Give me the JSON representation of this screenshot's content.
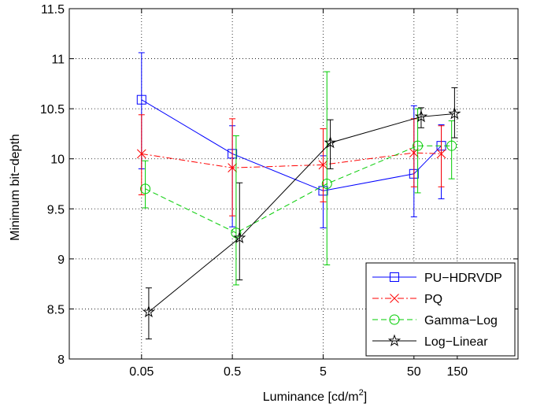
{
  "chart_data": {
    "type": "line",
    "title": "",
    "xlabel": "Luminance [cd/m",
    "xlabel_sup": "2",
    "xlabel_end": "]",
    "ylabel": "Minimum bit−depth",
    "x_scale": "log",
    "xlim": [
      0.008,
      700
    ],
    "ylim": [
      8,
      11.5
    ],
    "x_ticks": [
      0.05,
      0.5,
      5,
      50,
      150
    ],
    "x_tick_labels": [
      "0.05",
      "0.5",
      "5",
      "50",
      "150"
    ],
    "y_ticks": [
      8,
      8.5,
      9,
      9.5,
      10,
      10.5,
      11,
      11.5
    ],
    "y_tick_labels": [
      "8",
      "8.5",
      "9",
      "9.5",
      "10",
      "10.5",
      "11",
      "11.5"
    ],
    "grid": true,
    "legend_position": "bottom-right",
    "series": [
      {
        "name": "PU−HDRVDP",
        "color": "#0000ff",
        "dash": "solid",
        "marker": "square",
        "x": [
          0.05,
          0.5,
          5,
          50,
          100
        ],
        "y": [
          10.59,
          10.05,
          9.68,
          9.85,
          10.13
        ],
        "err_low": [
          9.9,
          9.32,
          9.31,
          9.42,
          9.6
        ],
        "err_high": [
          11.06,
          10.33,
          10.03,
          10.53,
          10.34
        ]
      },
      {
        "name": "PQ",
        "color": "#ff0000",
        "dash": "dashdot",
        "marker": "x",
        "x": [
          0.05,
          0.5,
          5,
          50,
          100
        ],
        "y": [
          10.05,
          9.91,
          9.94,
          10.06,
          10.05
        ],
        "err_low": [
          9.64,
          9.43,
          9.57,
          9.72,
          9.72
        ],
        "err_high": [
          10.44,
          10.4,
          10.3,
          10.4,
          10.33
        ]
      },
      {
        "name": "Gamma−Log",
        "color": "#00cc00",
        "dash": "dashed",
        "marker": "circle",
        "x": [
          0.055,
          0.55,
          5.5,
          55,
          130
        ],
        "y": [
          9.7,
          9.26,
          9.75,
          10.13,
          10.13
        ],
        "err_low": [
          9.51,
          8.74,
          8.94,
          9.66,
          9.8
        ],
        "err_high": [
          9.98,
          10.23,
          10.87,
          10.5,
          10.38
        ]
      },
      {
        "name": "Log−Linear",
        "color": "#000000",
        "dash": "solid",
        "marker": "star",
        "x": [
          0.06,
          0.6,
          6,
          60,
          140
        ],
        "y": [
          8.47,
          9.21,
          10.16,
          10.42,
          10.45
        ],
        "err_low": [
          8.2,
          8.79,
          9.9,
          10.31,
          10.21
        ],
        "err_high": [
          8.71,
          9.76,
          10.39,
          10.51,
          10.71
        ]
      }
    ]
  }
}
